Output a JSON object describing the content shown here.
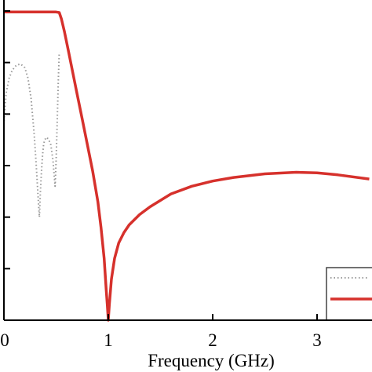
{
  "chart_data": {
    "type": "line",
    "title": "",
    "xlabel": "Frequency (GHz)",
    "ylabel": "",
    "xlim": [
      0,
      3.5
    ],
    "ylim": [
      -60,
      0
    ],
    "x_ticks": [
      0,
      1,
      2,
      3
    ],
    "x_tick_labels": [
      "0",
      "1",
      "2",
      "3"
    ],
    "y_ticks": [
      -60,
      -50,
      -40,
      -30,
      -20,
      -10,
      0
    ],
    "grid": false,
    "legend_position": "bottom-right",
    "series": [
      {
        "style": "dotted",
        "color": "#999999",
        "x": [
          0.0,
          0.02,
          0.05,
          0.08,
          0.12,
          0.16,
          0.2,
          0.23,
          0.26,
          0.29,
          0.31,
          0.33,
          0.34,
          0.35,
          0.36,
          0.37,
          0.38,
          0.39,
          0.41,
          0.43,
          0.45,
          0.47,
          0.49,
          0.5,
          0.51,
          0.52,
          0.53
        ],
        "y": [
          -22,
          -16,
          -13,
          -11.5,
          -10.5,
          -10.3,
          -11,
          -13,
          -17,
          -24,
          -30,
          -37,
          -40,
          -35,
          -31,
          -28,
          -26,
          -25,
          -24.5,
          -25,
          -26,
          -29,
          -34,
          -29,
          -22,
          -14,
          -8
        ]
      },
      {
        "style": "solid",
        "color": "#d6312c",
        "x": [
          0.0,
          0.3,
          0.5,
          0.53,
          0.55,
          0.58,
          0.62,
          0.66,
          0.7,
          0.75,
          0.8,
          0.85,
          0.9,
          0.93,
          0.96,
          0.98,
          0.99,
          1.0,
          1.01,
          1.03,
          1.06,
          1.1,
          1.15,
          1.2,
          1.3,
          1.4,
          1.6,
          1.8,
          2.0,
          2.2,
          2.5,
          2.8,
          3.0,
          3.2,
          3.5
        ],
        "y": [
          -0.2,
          -0.2,
          -0.2,
          -0.3,
          -1.5,
          -4,
          -8,
          -12,
          -16,
          -21,
          -26,
          -31,
          -37,
          -42,
          -48,
          -54,
          -57,
          -60,
          -57,
          -52,
          -48,
          -45,
          -43,
          -41.5,
          -39.5,
          -38,
          -35.5,
          -34,
          -33,
          -32.3,
          -31.6,
          -31.3,
          -31.4,
          -31.8,
          -32.6
        ]
      }
    ]
  }
}
